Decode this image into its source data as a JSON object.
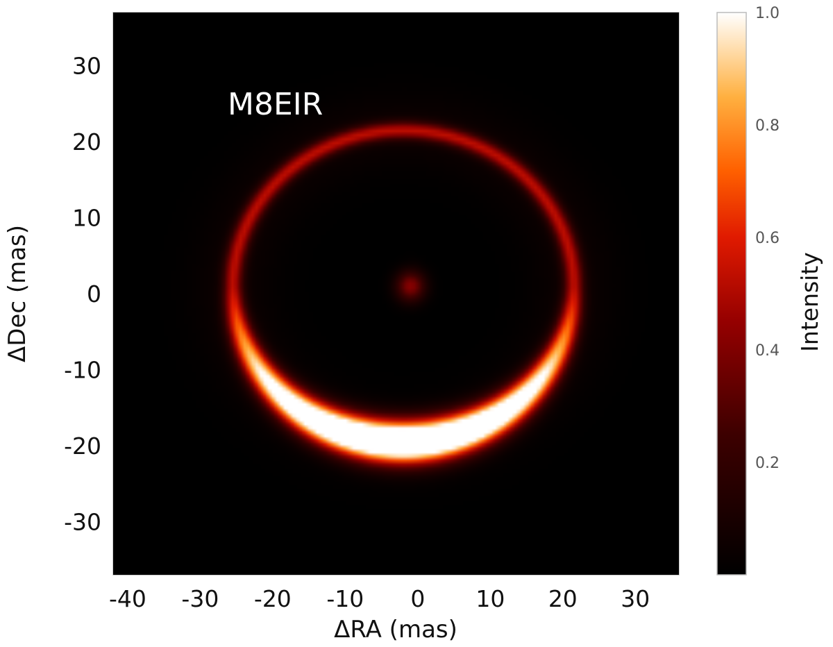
{
  "chart_data": {
    "type": "heatmap",
    "title": "",
    "annotation": "M8EIR",
    "xlabel": "ΔRA (mas)",
    "ylabel": "ΔDec (mas)",
    "xlim": [
      -42,
      36
    ],
    "ylim": [
      -37,
      37
    ],
    "xticks": [
      -40,
      -30,
      -20,
      -10,
      0,
      10,
      20,
      30
    ],
    "yticks": [
      30,
      20,
      10,
      0,
      -10,
      -20,
      -30
    ],
    "colormap": "gist_heat",
    "colorbar": {
      "label": "Intensity",
      "range": [
        0.0,
        1.0
      ],
      "ticks": [
        "1.0",
        "0.8",
        "0.6",
        "0.4",
        "0.2"
      ]
    },
    "ring": {
      "center_ra": -2,
      "center_dec": 1,
      "radius_ra": 23.5,
      "radius_dec": 20.5,
      "peak_intensity_south": 1.0,
      "min_intensity_north": 0.48
    },
    "central_source": {
      "ra": -1,
      "dec": 1,
      "intensity": 0.42
    },
    "grid": false
  }
}
